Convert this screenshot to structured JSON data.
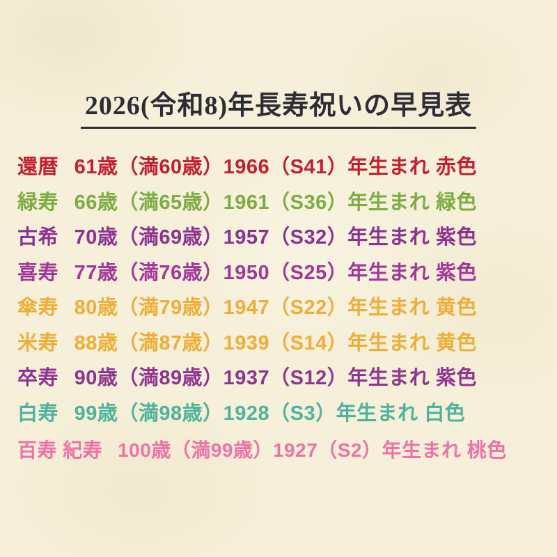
{
  "page": {
    "title": "2026(令和8)年長寿祝いの早見表",
    "title_color": "#2e2d35",
    "background_color": "#f6f0da"
  },
  "rows": [
    {
      "name": "還暦",
      "age": "61歳（満60歳）",
      "born": "1966（S41）年生まれ",
      "color_label": "赤色",
      "color": "#c1202f"
    },
    {
      "name": "緑寿",
      "age": "66歳（満65歳）",
      "born": "1961（S36）年生まれ",
      "color_label": "緑色",
      "color": "#7dac41"
    },
    {
      "name": "古希",
      "age": "70歳（満69歳）",
      "born": "1957（S32）年生まれ",
      "color_label": "紫色",
      "color": "#8c3290"
    },
    {
      "name": "喜寿",
      "age": "77歳（満76歳）",
      "born": "1950（S25）年生まれ",
      "color_label": "紫色",
      "color": "#a23898"
    },
    {
      "name": "傘寿",
      "age": "80歳（満79歳）",
      "born": "1947（S22）年生まれ",
      "color_label": "黄色",
      "color": "#eeae38"
    },
    {
      "name": "米寿",
      "age": "88歳（満87歳）",
      "born": "1939（S14）年生まれ",
      "color_label": "黄色",
      "color": "#eeae38"
    },
    {
      "name": "卒寿",
      "age": "90歳（満89歳）",
      "born": "1937（S12）年生まれ",
      "color_label": "紫色",
      "color": "#8f3591"
    },
    {
      "name": "白寿",
      "age": "99歳（満98歳）",
      "born": "1928（S3）年生まれ",
      "color_label": "白色",
      "color": "#4fb39c"
    },
    {
      "name": "百寿 紀寿",
      "age": "100歳（満99歳）",
      "born": "1927（S2）年生まれ",
      "color_label": "桃色",
      "color": "#ee72a6"
    }
  ]
}
